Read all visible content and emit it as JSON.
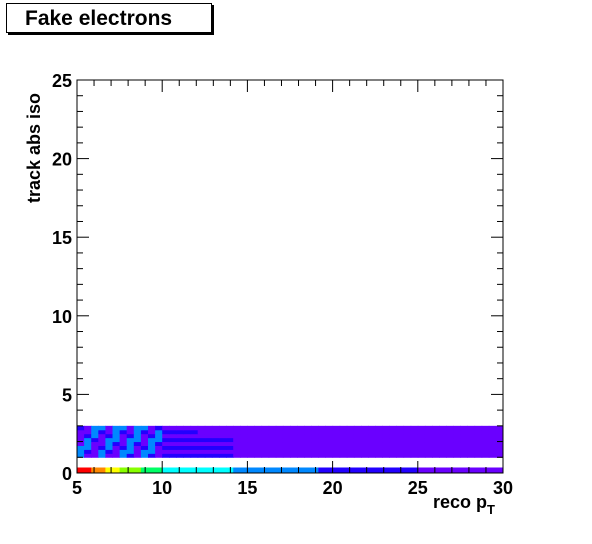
{
  "chart_data": {
    "type": "heatmap",
    "title": "Fake electrons",
    "xlabel": "reco p",
    "xlabel_sub": "T",
    "ylabel": "track abs iso",
    "xlim": [
      5,
      30
    ],
    "ylim": [
      0,
      25
    ],
    "xticks": [
      "5",
      "10",
      "15",
      "20",
      "25",
      "30"
    ],
    "yticks": [
      "0",
      "5",
      "10",
      "15",
      "20",
      "25"
    ],
    "grid": false,
    "legend": "none",
    "bands": [
      {
        "y": [
          1.0,
          3.0
        ],
        "fill": "mostly-violet",
        "description_color": "#5a00ff"
      },
      {
        "y": [
          0.0,
          0.35
        ],
        "fill": "colorful-low-row"
      }
    ],
    "palette": [
      "#ff0000",
      "#ff8800",
      "#ffff00",
      "#88ff00",
      "#00ff66",
      "#00ffff",
      "#0088ff",
      "#2200ff",
      "#6a00ff"
    ]
  }
}
